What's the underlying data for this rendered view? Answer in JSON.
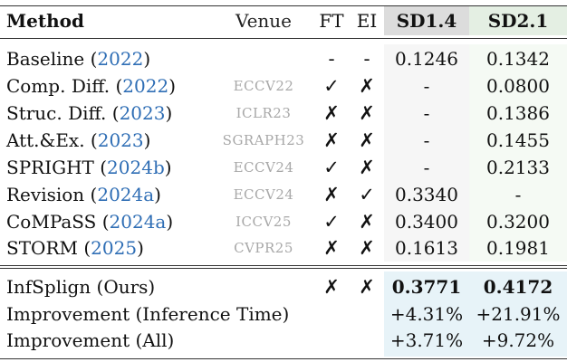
{
  "header": {
    "method": "Method",
    "venue": "Venue",
    "ft": "FT",
    "ei": "EI",
    "sd14": "SD1.4",
    "sd21": "SD2.1"
  },
  "rows": [
    {
      "method": "Baseline",
      "cite": "2022",
      "venue": "",
      "ft": "-",
      "ei": "-",
      "sd14": "0.1246",
      "sd21": "0.1342"
    },
    {
      "method": "Comp. Diff.",
      "cite": "2022",
      "venue": "ECCV22",
      "ft": "✓",
      "ei": "✗",
      "sd14": "-",
      "sd21": "0.0800"
    },
    {
      "method": "Struc. Diff.",
      "cite": "2023",
      "venue": "ICLR23",
      "ft": "✗",
      "ei": "✗",
      "sd14": "-",
      "sd21": "0.1386"
    },
    {
      "method": "Att.&Ex.",
      "cite": "2023",
      "venue": "SGRAPH23",
      "ft": "✗",
      "ei": "✗",
      "sd14": "-",
      "sd21": "0.1455"
    },
    {
      "method": "SPRIGHT",
      "cite": "2024b",
      "venue": "ECCV24",
      "ft": "✓",
      "ei": "✗",
      "sd14": "-",
      "sd21": "0.2133"
    },
    {
      "method": "Revision",
      "cite": "2024a",
      "venue": "ECCV24",
      "ft": "✗",
      "ei": "✓",
      "sd14": "0.3340",
      "sd21": "-"
    },
    {
      "method": "CoMPaSS",
      "cite": "2024a",
      "venue": "ICCV25",
      "ft": "✓",
      "ei": "✗",
      "sd14": "0.3400",
      "sd21": "0.3200"
    },
    {
      "method": "STORM",
      "cite": "2025",
      "venue": "CVPR25",
      "ft": "✗",
      "ei": "✗",
      "sd14": "0.1613",
      "sd21": "0.1981"
    }
  ],
  "ours": {
    "method": "InfSplign (Ours)",
    "ft": "✗",
    "ei": "✗",
    "sd14": "0.3771",
    "sd21": "0.4172"
  },
  "improvements": [
    {
      "label": "Improvement (Inference Time)",
      "sd14": "+4.31%",
      "sd21": "+21.91%"
    },
    {
      "label": "Improvement (All)",
      "sd14": "+3.71%",
      "sd21": "+9.72%"
    }
  ],
  "colors": {
    "citation": "#2f6eb5",
    "venue_text": "#a8a8a8",
    "sd14_header_bg": "#dcdcdc",
    "sd21_header_bg": "#e4efe3",
    "ours_highlight_bg": "#e7f3f8"
  }
}
